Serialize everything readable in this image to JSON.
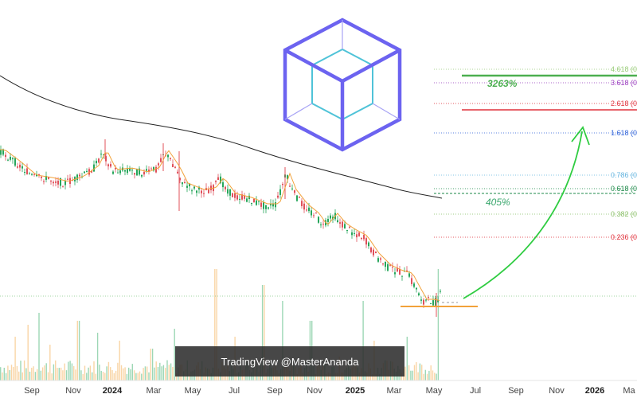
{
  "chart_data": {
    "type": "candlestick",
    "title": "",
    "x_axis": {
      "tick_labels": [
        "Sep",
        "Nov",
        "2024",
        "Mar",
        "May",
        "Jul",
        "Sep",
        "Nov",
        "2025",
        "Mar",
        "May",
        "Jul",
        "Sep",
        "Nov",
        "2026",
        "Ma"
      ],
      "bold_ticks": [
        "2024",
        "2025",
        "2026"
      ]
    },
    "fib_levels": [
      {
        "ratio": "4.618",
        "label": "4.618 (0",
        "color": "#9acd7a"
      },
      {
        "ratio": "3.618",
        "label": "3.618 (0",
        "color": "#9b3fbf"
      },
      {
        "ratio": "2.618",
        "label": "2.618 (0",
        "color": "#e0323c"
      },
      {
        "ratio": "1.618",
        "label": "1.618 (0",
        "color": "#2f63d9"
      },
      {
        "ratio": "0.786",
        "label": "0.786 (0",
        "color": "#68b6e0"
      },
      {
        "ratio": "0.618",
        "label": "0.618 (0",
        "color": "#1e8a4a"
      },
      {
        "ratio": "0.382",
        "label": "0.382 (0",
        "color": "#8cc06a"
      },
      {
        "ratio": "0.236",
        "label": "0.236 (0",
        "color": "#e0323c"
      }
    ],
    "annotations": [
      {
        "text": "3263%",
        "color": "#4caf50"
      },
      {
        "text": "405%",
        "color": "#3aa76d"
      }
    ],
    "moving_average_colors": {
      "long": "#222222",
      "short": "#f2a23a"
    },
    "candle_colors": {
      "up": "#26a65b",
      "down": "#e0505a"
    },
    "support_line_color": "#f2a23a",
    "projection_arrow_color": "#2ecc40"
  },
  "watermark": {
    "text": "TradingView @MasterAnanda"
  },
  "logo": {
    "name": "cube-logo",
    "outer_color": "#6c63f0",
    "inner_color": "#4fc3d8"
  }
}
